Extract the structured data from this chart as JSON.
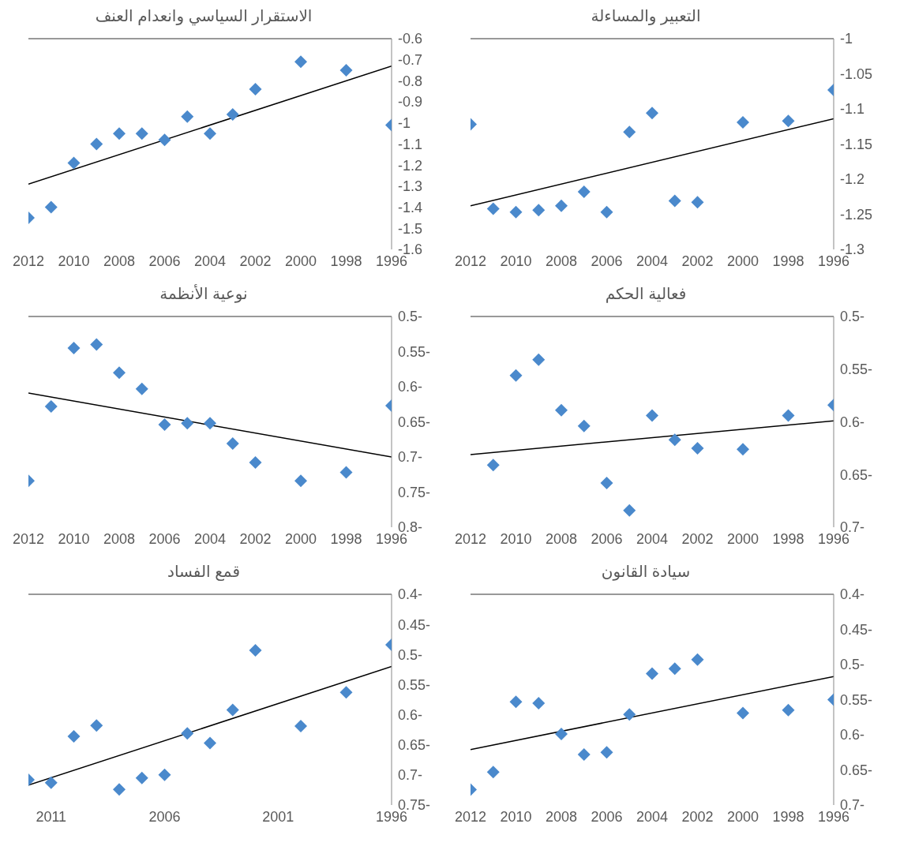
{
  "chart_data": [
    {
      "type": "scatter",
      "title": "الاستقرار السياسي وانعدام العنف",
      "xlim": [
        2012,
        1996
      ],
      "xticks": [
        2012,
        2010,
        2008,
        2006,
        2004,
        2002,
        2000,
        1998,
        1996
      ],
      "ylim": [
        -1.6,
        -0.6
      ],
      "yticks": [
        -1.6,
        -1.5,
        -1.4,
        -1.3,
        -1.2,
        -1.1,
        -1,
        -0.9,
        -0.8,
        -0.7,
        -0.6
      ],
      "series": [
        {
          "type": "scatter",
          "marker": "diamond",
          "color": "#4a89cc",
          "x": [
            2012,
            2011,
            2010,
            2009,
            2008,
            2007,
            2006,
            2005,
            2004,
            2003,
            2002,
            2000,
            1998,
            1996
          ],
          "values": [
            -1.45,
            -1.4,
            -1.19,
            -1.1,
            -1.05,
            -1.05,
            -1.08,
            -0.97,
            -1.05,
            -0.96,
            -0.84,
            -0.71,
            -0.75,
            -1.01
          ]
        },
        {
          "type": "line",
          "color": "#000000",
          "x": [
            2012,
            1996
          ],
          "values": [
            -1.29,
            -0.73
          ]
        }
      ]
    },
    {
      "type": "scatter",
      "title": "التعبير والمساءلة",
      "xlim": [
        2012,
        1996
      ],
      "xticks": [
        2012,
        2010,
        2008,
        2006,
        2004,
        2002,
        2000,
        1998,
        1996
      ],
      "ylim": [
        -1.3,
        -1
      ],
      "yticks": [
        -1.3,
        -1.25,
        -1.2,
        -1.15,
        -1.1,
        -1.05,
        -1
      ],
      "series": [
        {
          "type": "scatter",
          "marker": "diamond",
          "color": "#4a89cc",
          "x": [
            2012,
            2011,
            2010,
            2009,
            2008,
            2007,
            2006,
            2005,
            2004,
            2003,
            2002,
            2000,
            1998,
            1996
          ],
          "values": [
            -1.122,
            -1.242,
            -1.247,
            -1.244,
            -1.238,
            -1.218,
            -1.247,
            -1.133,
            -1.106,
            -1.231,
            -1.233,
            -1.119,
            -1.117,
            -1.073
          ]
        },
        {
          "type": "line",
          "color": "#000000",
          "x": [
            2012,
            1996
          ],
          "values": [
            -1.238,
            -1.114
          ]
        }
      ]
    },
    {
      "type": "scatter",
      "title": "نوعية الأنظمة",
      "xlim": [
        2012,
        1996
      ],
      "xticks": [
        2012,
        2010,
        2008,
        2006,
        2004,
        2002,
        2000,
        1998,
        1996
      ],
      "ylim": [
        -0.8,
        -0.5
      ],
      "yticks": [
        {
          "value": -0.8,
          "label": "0.8-"
        },
        {
          "value": -0.75,
          "label": "0.75-"
        },
        {
          "value": -0.7,
          "label": "0.7-"
        },
        {
          "value": -0.65,
          "label": "0.65-"
        },
        {
          "value": -0.6,
          "label": "0.6-"
        },
        {
          "value": -0.55,
          "label": "0.55-"
        },
        {
          "value": -0.5,
          "label": "0.5-"
        }
      ],
      "series": [
        {
          "type": "scatter",
          "marker": "diamond",
          "color": "#4a89cc",
          "x": [
            2012,
            2011,
            2010,
            2009,
            2008,
            2007,
            2006,
            2005,
            2004,
            2003,
            2002,
            2000,
            1998,
            1996
          ],
          "values": [
            -0.734,
            -0.628,
            -0.545,
            -0.54,
            -0.58,
            -0.603,
            -0.654,
            -0.652,
            -0.652,
            -0.681,
            -0.708,
            -0.734,
            -0.722,
            -0.627
          ]
        },
        {
          "type": "line",
          "color": "#000000",
          "x": [
            2012,
            1996
          ],
          "values": [
            -0.609,
            -0.7
          ]
        }
      ]
    },
    {
      "type": "scatter",
      "title": "فعالية الحكم",
      "xlim": [
        2012,
        1996
      ],
      "xticks": [
        2012,
        2010,
        2008,
        2006,
        2004,
        2002,
        2000,
        1998,
        1996
      ],
      "ylim": [
        -0.7,
        -0.5
      ],
      "yticks": [
        {
          "value": -0.7,
          "label": "0.7-"
        },
        {
          "value": -0.65,
          "label": "0.65-"
        },
        {
          "value": -0.6,
          "label": "0.6-"
        },
        {
          "value": -0.55,
          "label": "0.55-"
        },
        {
          "value": -0.5,
          "label": "0.5-"
        }
      ],
      "series": [
        {
          "type": "scatter",
          "marker": "diamond",
          "color": "#4a89cc",
          "x": [
            2011,
            2010,
            2009,
            2008,
            2007,
            2006,
            2005,
            2004,
            2003,
            2002,
            2000,
            1998,
            1996
          ],
          "values": [
            -0.641,
            -0.556,
            -0.541,
            -0.589,
            -0.604,
            -0.658,
            -0.684,
            -0.594,
            -0.617,
            -0.625,
            -0.626,
            -0.594,
            -0.584
          ]
        },
        {
          "type": "line",
          "color": "#000000",
          "x": [
            2012,
            1996
          ],
          "values": [
            -0.631,
            -0.599
          ]
        }
      ]
    },
    {
      "type": "scatter",
      "title": "قمع الفساد",
      "xlim": [
        2012,
        1996
      ],
      "xticks": [
        2011,
        2006,
        2001,
        1996
      ],
      "ylim": [
        -0.75,
        -0.4
      ],
      "yticks": [
        {
          "value": -0.75,
          "label": "0.75-"
        },
        {
          "value": -0.7,
          "label": "0.7-"
        },
        {
          "value": -0.65,
          "label": "0.65-"
        },
        {
          "value": -0.6,
          "label": "0.6-"
        },
        {
          "value": -0.55,
          "label": "0.55-"
        },
        {
          "value": -0.5,
          "label": "0.5-"
        },
        {
          "value": -0.45,
          "label": "0.45-"
        },
        {
          "value": -0.4,
          "label": "0.4-"
        }
      ],
      "series": [
        {
          "type": "scatter",
          "marker": "diamond",
          "color": "#4a89cc",
          "x": [
            2012,
            2011,
            2010,
            2009,
            2008,
            2007,
            2006,
            2005,
            2004,
            2003,
            2002,
            2000,
            1998,
            1996
          ],
          "values": [
            -0.708,
            -0.713,
            -0.636,
            -0.618,
            -0.724,
            -0.705,
            -0.7,
            -0.631,
            -0.647,
            -0.592,
            -0.493,
            -0.619,
            -0.563,
            -0.484
          ]
        },
        {
          "type": "line",
          "color": "#000000",
          "x": [
            2012,
            1996
          ],
          "values": [
            -0.717,
            -0.52
          ]
        }
      ]
    },
    {
      "type": "scatter",
      "title": "سيادة القانون",
      "xlim": [
        2012,
        1996
      ],
      "xticks": [
        2012,
        2010,
        2008,
        2006,
        2004,
        2002,
        2000,
        1998,
        1996
      ],
      "ylim": [
        -0.7,
        -0.4
      ],
      "yticks": [
        {
          "value": -0.7,
          "label": "0.7-"
        },
        {
          "value": -0.65,
          "label": "0.65-"
        },
        {
          "value": -0.6,
          "label": "0.6-"
        },
        {
          "value": -0.55,
          "label": "0.55-"
        },
        {
          "value": -0.5,
          "label": "0.5-"
        },
        {
          "value": -0.45,
          "label": "0.45-"
        },
        {
          "value": -0.4,
          "label": "0.4-"
        }
      ],
      "series": [
        {
          "type": "scatter",
          "marker": "diamond",
          "color": "#4a89cc",
          "x": [
            2012,
            2011,
            2010,
            2009,
            2008,
            2007,
            2006,
            2005,
            2004,
            2003,
            2002,
            2000,
            1998,
            1996
          ],
          "values": [
            -0.678,
            -0.653,
            -0.553,
            -0.555,
            -0.599,
            -0.628,
            -0.625,
            -0.571,
            -0.513,
            -0.506,
            -0.493,
            -0.569,
            -0.565,
            -0.55
          ]
        },
        {
          "type": "line",
          "color": "#000000",
          "x": [
            2012,
            1996
          ],
          "values": [
            -0.621,
            -0.517
          ]
        }
      ]
    }
  ]
}
